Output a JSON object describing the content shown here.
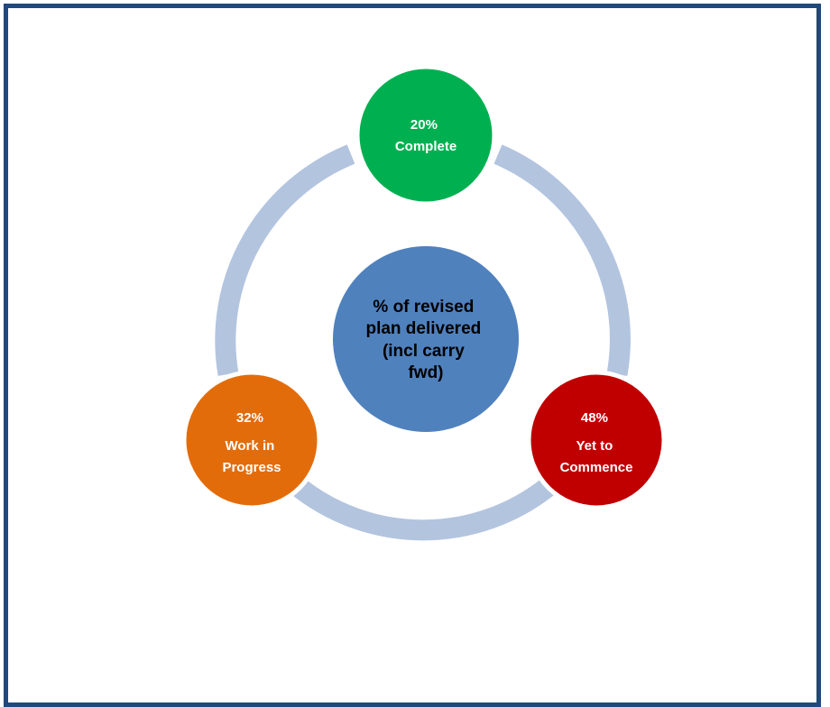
{
  "diagram": {
    "center": {
      "lines": [
        "% of revised",
        "plan delivered",
        "(incl carry",
        "fwd)"
      ],
      "color": "#4f81bd"
    },
    "ring_color": "#b3c4df",
    "nodes": [
      {
        "id": "complete",
        "percent": "20%",
        "lines": [
          "Complete"
        ],
        "color": "#00b050"
      },
      {
        "id": "yet-to-commence",
        "percent": "48%",
        "lines": [
          "Yet to",
          "Commence"
        ],
        "color": "#c00000"
      },
      {
        "id": "work-in-progress",
        "percent": "32%",
        "lines": [
          "Work in",
          "Progress"
        ],
        "color": "#e36c0a"
      }
    ]
  }
}
